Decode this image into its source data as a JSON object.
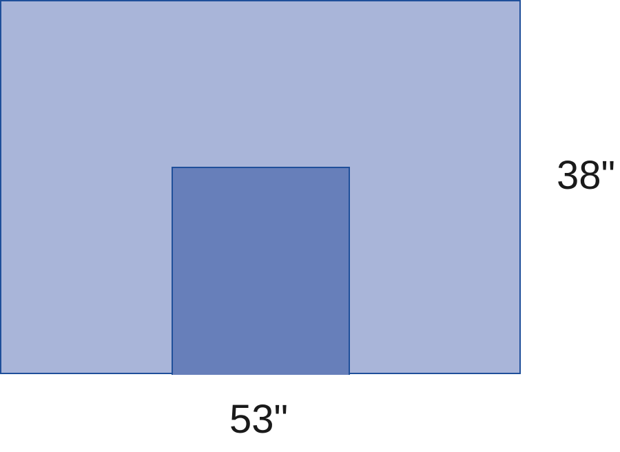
{
  "dimensions": {
    "height": "38\"",
    "width": "53\""
  },
  "colors": {
    "outer_fill": "#a9b5d9",
    "inner_fill": "#677fba",
    "outline": "#1f4f9a",
    "text": "#1a1a1a"
  }
}
